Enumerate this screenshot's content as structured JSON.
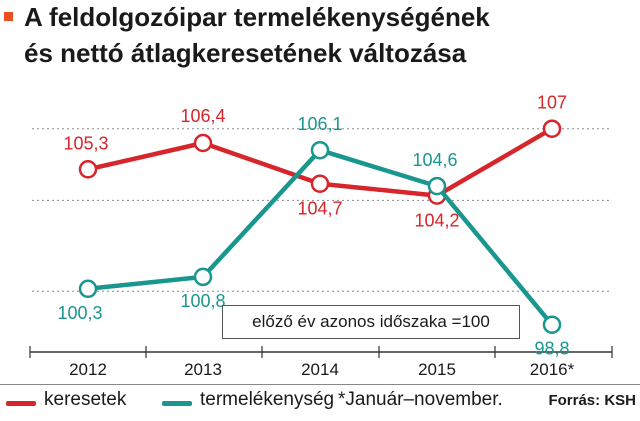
{
  "title": {
    "line1": "A feldolgozóipar termelékenységének",
    "line2": "és nettó átlagkeresetének változása",
    "marker_color": "#e8501e"
  },
  "chart_data": {
    "type": "line",
    "categories": [
      "2012",
      "2013",
      "2014",
      "2015",
      "2016*"
    ],
    "series": [
      {
        "name": "keresetek",
        "color": "#d7262b",
        "values": [
          105.3,
          106.4,
          104.7,
          104.2,
          107
        ],
        "labels": [
          "105,3",
          "106,4",
          "104,7",
          "104,2",
          "107"
        ]
      },
      {
        "name": "termelékenység",
        "color": "#19978f",
        "values": [
          100.3,
          100.8,
          106.1,
          104.6,
          98.8
        ],
        "labels": [
          "100,3",
          "100,8",
          "106,1",
          "104,6",
          "98,8"
        ]
      }
    ],
    "note": "előző év azonos időszaka =100",
    "grid": "dotted horizontal",
    "legend_position": "bottom"
  },
  "legend": {
    "footnote": "*Január–november.",
    "source": "Forrás: KSH"
  }
}
